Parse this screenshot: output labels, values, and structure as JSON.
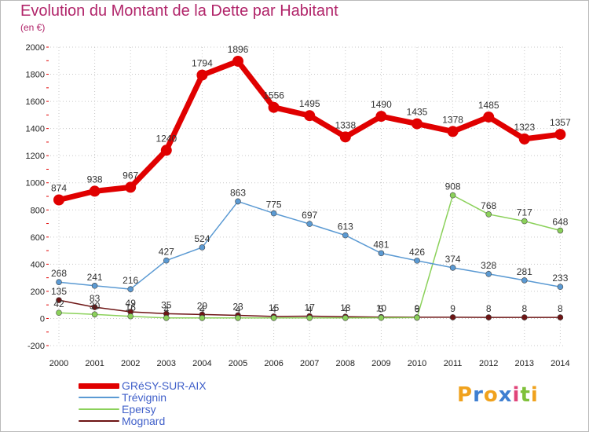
{
  "title": "Evolution du Montant de la Dette par Habitant",
  "subtitle": "(en €)",
  "brand": {
    "letters": [
      "P",
      "r",
      "o",
      "x",
      "i",
      "t",
      "i"
    ],
    "colors": [
      "#f0a21e",
      "#3f7fd1",
      "#f0a21e",
      "#3f7fd1",
      "#e0457a",
      "#7fc13a",
      "#f0a21e"
    ]
  },
  "colors": {
    "grid": "#c8c8c8",
    "axis_text": "#222222",
    "tick_red": "#e00000"
  },
  "chart_data": {
    "type": "line",
    "title": "Evolution du Montant de la Dette par Habitant",
    "subtitle": "(en €)",
    "xlabel": "",
    "ylabel": "",
    "x": [
      2000,
      2001,
      2002,
      2003,
      2004,
      2005,
      2006,
      2007,
      2008,
      2009,
      2010,
      2011,
      2012,
      2013,
      2014
    ],
    "ylim": [
      -200,
      2000
    ],
    "yticks": [
      -200,
      0,
      200,
      400,
      600,
      800,
      1000,
      1200,
      1400,
      1600,
      1800,
      2000
    ],
    "grid": true,
    "legend_position": "bottom-left",
    "series": [
      {
        "name": "GRéSY-SUR-AIX",
        "color": "#e00000",
        "line_width": 7,
        "marker_radius": 7,
        "values": [
          874,
          938,
          967,
          1240,
          1794,
          1896,
          1556,
          1495,
          1338,
          1490,
          1435,
          1378,
          1485,
          1323,
          1357
        ],
        "labels": [
          "874",
          "938",
          "967",
          "1240",
          "1794",
          "1896",
          "1556",
          "1495",
          "1338",
          "1490",
          "1435",
          "1378",
          "1485",
          "1323",
          "1357"
        ]
      },
      {
        "name": "Trévignin",
        "color": "#5b9ad3",
        "line_width": 1.5,
        "marker_radius": 3.5,
        "values": [
          268,
          241,
          216,
          427,
          524,
          863,
          775,
          697,
          613,
          481,
          426,
          374,
          328,
          281,
          233
        ],
        "labels": [
          "268",
          "241",
          "216",
          "427",
          "524",
          "863",
          "775",
          "697",
          "613",
          "481",
          "426",
          "374",
          "328",
          "281",
          "233"
        ]
      },
      {
        "name": "Epersy",
        "color": "#8bd15a",
        "line_width": 1.5,
        "marker_radius": 3.5,
        "values": [
          42,
          30,
          16,
          4,
          4,
          4,
          4,
          4,
          4,
          5,
          6,
          908,
          768,
          717,
          648
        ],
        "labels": [
          "42",
          "30",
          "16",
          "4",
          "4",
          "4",
          "4",
          "4",
          "4",
          "5",
          "6",
          "908",
          "768",
          "717",
          "648"
        ]
      },
      {
        "name": "Mognard",
        "color": "#6d1414",
        "line_width": 1.5,
        "marker_radius": 3.5,
        "values": [
          135,
          83,
          49,
          35,
          29,
          23,
          15,
          17,
          13,
          10,
          9,
          9,
          8,
          8,
          8
        ],
        "labels": [
          "135",
          "83",
          "49",
          "35",
          "29",
          "23",
          "15",
          "17",
          "13",
          "10",
          "9",
          "9",
          "8",
          "8",
          "8"
        ]
      }
    ]
  }
}
